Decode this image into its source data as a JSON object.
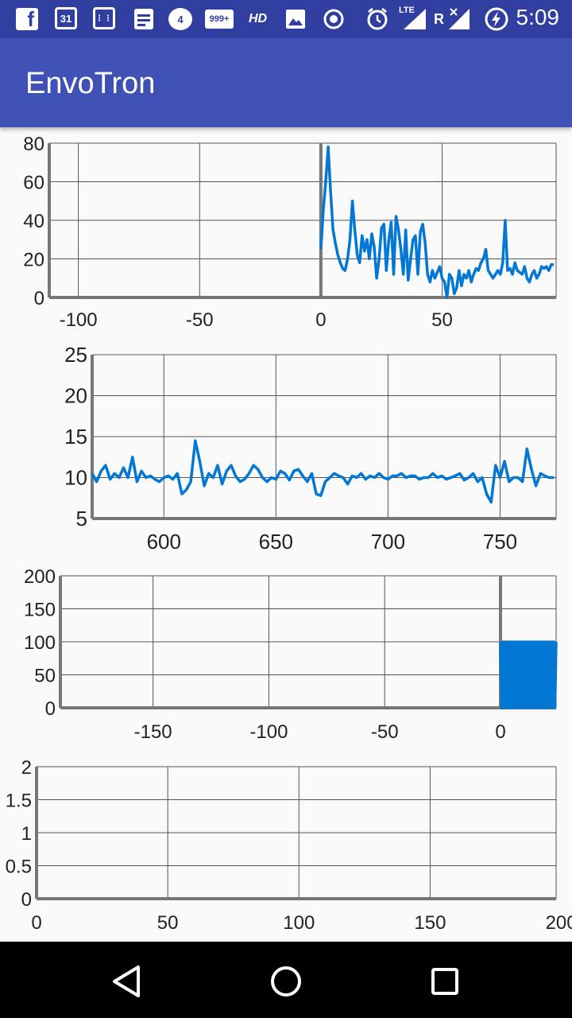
{
  "status_bar": {
    "time": "5:09",
    "icons": [
      "facebook-icon",
      "calendar-icon",
      "keypad-icon",
      "document-icon",
      "chat-icon",
      "mail-icon",
      "hd-icon",
      "image-icon",
      "record-icon",
      "alarm-icon",
      "lte-signal-icon",
      "roaming-signal-icon",
      "battery-charging-icon"
    ],
    "calendar_day": "31",
    "chat_badge": "4",
    "mail_badge": "999+",
    "hd_label": "HD",
    "lte_label": "LTE",
    "roaming_label": "R"
  },
  "app_bar": {
    "title": "EnvoTron"
  },
  "colors": {
    "primary": "#3f51b5",
    "primary_dark": "#303f9f",
    "series": "#0277d3",
    "axis": "#777777"
  },
  "chart_data": [
    {
      "type": "line",
      "xlim": [
        -112,
        97
      ],
      "ylim": [
        0,
        80
      ],
      "x_ticks": [
        "-100",
        "-50",
        "0",
        "50"
      ],
      "x_tick_values": [
        -100,
        -50,
        0,
        50
      ],
      "y_ticks": [
        "0",
        "20",
        "40",
        "60",
        "80"
      ],
      "grid": true,
      "series": [
        {
          "x": [
            0,
            1,
            2,
            3,
            4,
            5,
            6,
            7,
            8,
            9,
            10,
            11,
            12,
            13,
            14,
            15,
            16,
            17,
            18,
            19,
            20,
            21,
            22,
            23,
            24,
            25,
            26,
            27,
            28,
            29,
            30,
            31,
            32,
            33,
            34,
            35,
            36,
            37,
            38,
            39,
            40,
            41,
            42,
            43,
            44,
            45,
            46,
            47,
            48,
            49,
            50,
            51,
            52,
            53,
            54,
            55,
            56,
            57,
            58,
            59,
            60,
            61,
            62,
            63,
            64,
            65,
            66,
            67,
            68,
            69,
            70,
            71,
            72,
            73,
            74,
            75,
            76,
            77,
            78,
            79,
            80,
            81,
            82,
            83,
            84,
            85,
            86,
            87,
            88,
            89,
            90,
            91,
            92,
            93,
            94,
            95,
            96
          ],
          "y": [
            25,
            45,
            60,
            78,
            55,
            35,
            28,
            22,
            18,
            15,
            14,
            20,
            30,
            50,
            35,
            22,
            18,
            32,
            24,
            30,
            20,
            33,
            26,
            10,
            20,
            36,
            38,
            14,
            30,
            39,
            12,
            42,
            35,
            25,
            12,
            35,
            9,
            20,
            30,
            32,
            12,
            34,
            38,
            28,
            12,
            8,
            14,
            10,
            13,
            16,
            10,
            8,
            0,
            12,
            10,
            2,
            5,
            14,
            6,
            12,
            10,
            14,
            8,
            12,
            15,
            14,
            18,
            20,
            25,
            14,
            12,
            10,
            12,
            14,
            12,
            18,
            40,
            14,
            15,
            12,
            18,
            14,
            13,
            12,
            16,
            10,
            8,
            12,
            14,
            10,
            12,
            16,
            15,
            16,
            14,
            17,
            17
          ]
        }
      ]
    },
    {
      "type": "line",
      "xlim": [
        568,
        775
      ],
      "ylim": [
        5,
        25
      ],
      "x_ticks": [
        "600",
        "650",
        "700",
        "750"
      ],
      "x_tick_values": [
        600,
        650,
        700,
        750
      ],
      "y_ticks": [
        "5",
        "10",
        "15",
        "20",
        "25"
      ],
      "grid": true,
      "series": [
        {
          "x": [
            568,
            570,
            572,
            574,
            576,
            578,
            580,
            582,
            584,
            586,
            588,
            590,
            592,
            594,
            596,
            598,
            600,
            602,
            604,
            606,
            608,
            610,
            612,
            614,
            616,
            618,
            620,
            622,
            624,
            626,
            628,
            630,
            632,
            634,
            636,
            638,
            640,
            642,
            644,
            646,
            648,
            650,
            652,
            654,
            656,
            658,
            660,
            662,
            664,
            666,
            668,
            670,
            672,
            674,
            676,
            678,
            680,
            682,
            684,
            686,
            688,
            690,
            692,
            694,
            696,
            698,
            700,
            702,
            704,
            706,
            708,
            710,
            712,
            714,
            716,
            718,
            720,
            722,
            724,
            726,
            728,
            730,
            732,
            734,
            736,
            738,
            740,
            742,
            744,
            746,
            748,
            750,
            752,
            754,
            756,
            758,
            760,
            762,
            764,
            766,
            768,
            770,
            772,
            774
          ],
          "y": [
            10.5,
            9.5,
            10.8,
            11.5,
            9.8,
            10.5,
            10,
            11.2,
            10,
            12.5,
            9.5,
            10.8,
            10,
            10.2,
            9.8,
            9.5,
            10,
            10.2,
            9.8,
            10.5,
            8,
            8.5,
            9.5,
            14.5,
            12,
            9,
            10.5,
            10,
            11.5,
            9.2,
            10.8,
            11.5,
            10.2,
            9.5,
            9.8,
            10.5,
            11.5,
            11,
            10,
            9.5,
            10,
            9.8,
            10.8,
            10.5,
            9.7,
            10.8,
            11,
            10.2,
            9.5,
            10.5,
            8,
            7.8,
            9.5,
            10,
            10.5,
            10.2,
            10,
            9.2,
            10.2,
            10,
            10.5,
            9.8,
            10.2,
            10,
            10.5,
            10,
            9.8,
            10.2,
            10.2,
            10.5,
            10,
            10.2,
            10.2,
            9.8,
            10,
            10,
            10.5,
            10,
            10.2,
            9.8,
            10,
            10.2,
            10.5,
            9.7,
            10,
            10.5,
            9.5,
            10,
            8,
            7,
            11.5,
            10,
            12,
            9.5,
            10,
            10,
            9.5,
            13.5,
            11,
            9,
            10.5,
            10.2,
            10,
            10
          ]
        }
      ]
    },
    {
      "type": "line",
      "xlim": [
        -190,
        24
      ],
      "ylim": [
        0,
        200
      ],
      "x_ticks": [
        "-150",
        "-100",
        "-50",
        "0"
      ],
      "x_tick_values": [
        -150,
        -100,
        -50,
        0
      ],
      "y_ticks": [
        "0",
        "50",
        "100",
        "150",
        "200"
      ],
      "grid": true,
      "series": [
        {
          "x_start": 0,
          "x_step": 0.5,
          "y_pattern": [
            100,
            0
          ],
          "count": 49
        }
      ]
    },
    {
      "type": "line",
      "xlim": [
        0,
        198
      ],
      "ylim": [
        0,
        2
      ],
      "x_ticks": [
        "0",
        "50",
        "100",
        "150",
        "200"
      ],
      "x_tick_values": [
        0,
        50,
        100,
        150,
        200
      ],
      "y_ticks": [
        "0",
        "0.5",
        "1",
        "1.5",
        "2"
      ],
      "grid": true,
      "series": []
    }
  ]
}
